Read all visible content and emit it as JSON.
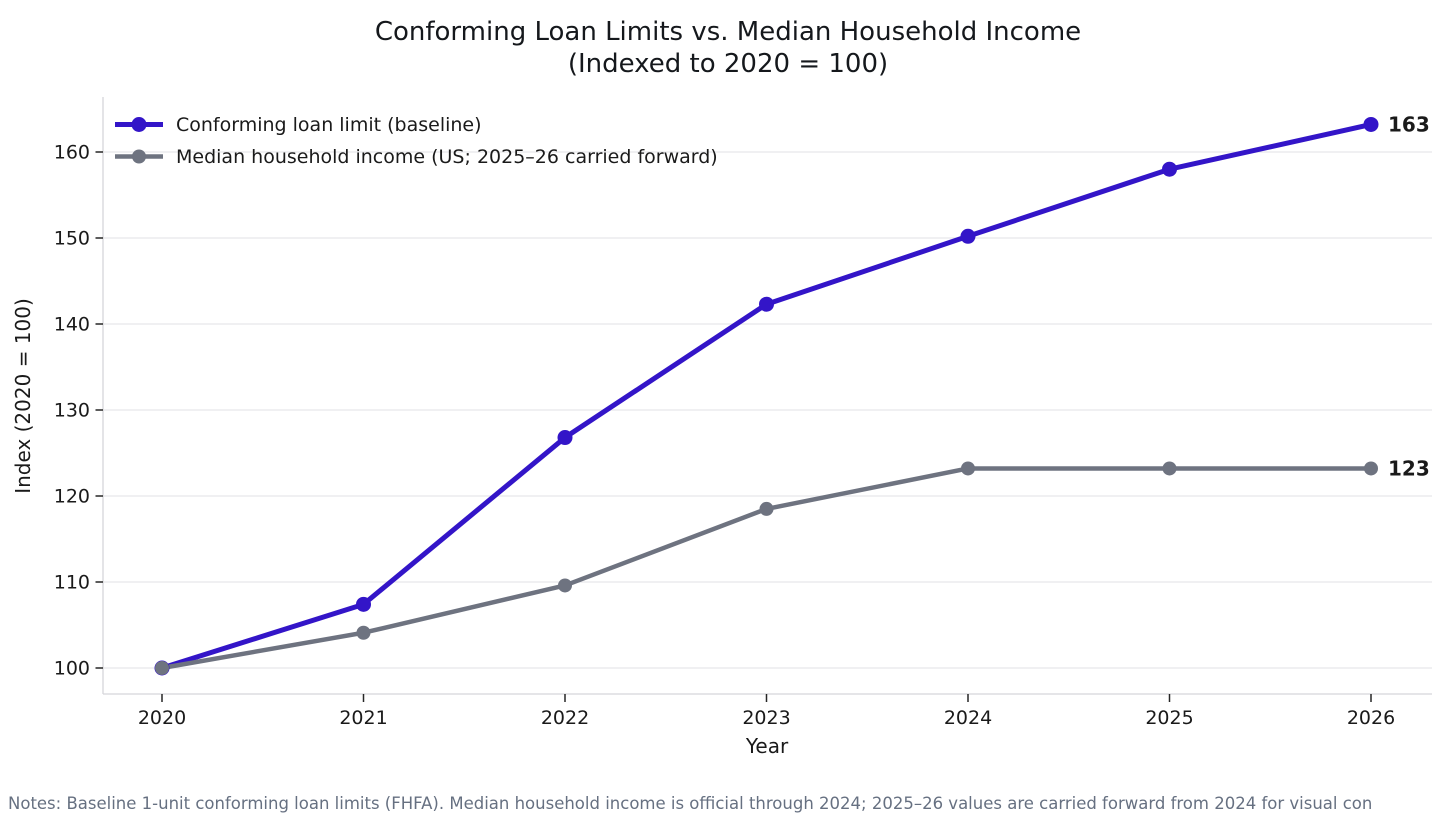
{
  "title": "Conforming Loan Limits vs. Median Household Income",
  "subtitle": "(Indexed to 2020 = 100)",
  "notes": "Notes: Baseline 1-unit conforming loan limits (FHFA). Median household income is official through 2024; 2025–26 values are carried forward from 2024 for visual con",
  "chart_data": {
    "type": "line",
    "x": [
      2020,
      2021,
      2022,
      2023,
      2024,
      2025,
      2026
    ],
    "series": [
      {
        "name": "Conforming loan limit (baseline)",
        "slug": "conforming-loan-limit",
        "color": "#3315c8",
        "values": [
          100,
          107.4,
          126.8,
          142.3,
          150.2,
          158.0,
          163.2
        ],
        "end_label": "163",
        "line_width": 5,
        "marker_radius": 7.5
      },
      {
        "name": "Median household income (US; 2025–26 carried forward)",
        "slug": "median-household-income",
        "color": "#6e7380",
        "values": [
          100,
          104.1,
          109.6,
          118.5,
          123.2,
          123.2,
          123.2
        ],
        "end_label": "123",
        "line_width": 4.5,
        "marker_radius": 7
      }
    ],
    "xlabel": "Year",
    "ylabel": "Index (2020 = 100)",
    "yticks": [
      100,
      110,
      120,
      130,
      140,
      150,
      160
    ],
    "ylim": [
      97,
      166.5
    ],
    "grid": true,
    "legend_position": "upper left",
    "colors": {
      "grid": "#e8e8eb",
      "spine": "#d5d5da",
      "tick": "#262626",
      "tick_label": "#1a1a1a",
      "notes": "#667081"
    }
  }
}
